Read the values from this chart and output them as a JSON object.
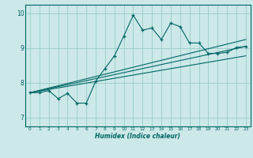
{
  "xlabel": "Humidex (Indice chaleur)",
  "background_color": "#cce8e8",
  "grid_color": "#99cccc",
  "line_color": "#006666",
  "xlim": [
    -0.5,
    23.5
  ],
  "ylim": [
    6.75,
    10.25
  ],
  "xticks": [
    0,
    1,
    2,
    3,
    4,
    5,
    6,
    7,
    8,
    9,
    10,
    11,
    12,
    13,
    14,
    15,
    16,
    17,
    18,
    19,
    20,
    21,
    22,
    23
  ],
  "yticks": [
    7,
    8,
    9,
    10
  ],
  "line1_x": [
    0,
    1,
    2,
    3,
    4,
    5,
    6,
    7,
    8,
    9,
    10,
    11,
    12,
    13,
    14,
    15,
    16,
    17,
    18,
    19,
    20,
    21,
    22,
    23
  ],
  "line1_y": [
    7.72,
    7.72,
    7.78,
    7.55,
    7.7,
    7.42,
    7.42,
    8.05,
    8.42,
    8.78,
    9.35,
    9.95,
    9.52,
    9.58,
    9.25,
    9.72,
    9.62,
    9.15,
    9.15,
    8.85,
    8.85,
    8.88,
    9.02,
    9.05
  ],
  "line2_x": [
    0,
    23
  ],
  "line2_y": [
    7.72,
    9.05
  ],
  "line3_x": [
    0,
    23
  ],
  "line3_y": [
    7.72,
    8.78
  ],
  "line4_x": [
    0,
    23
  ],
  "line4_y": [
    7.72,
    9.25
  ]
}
